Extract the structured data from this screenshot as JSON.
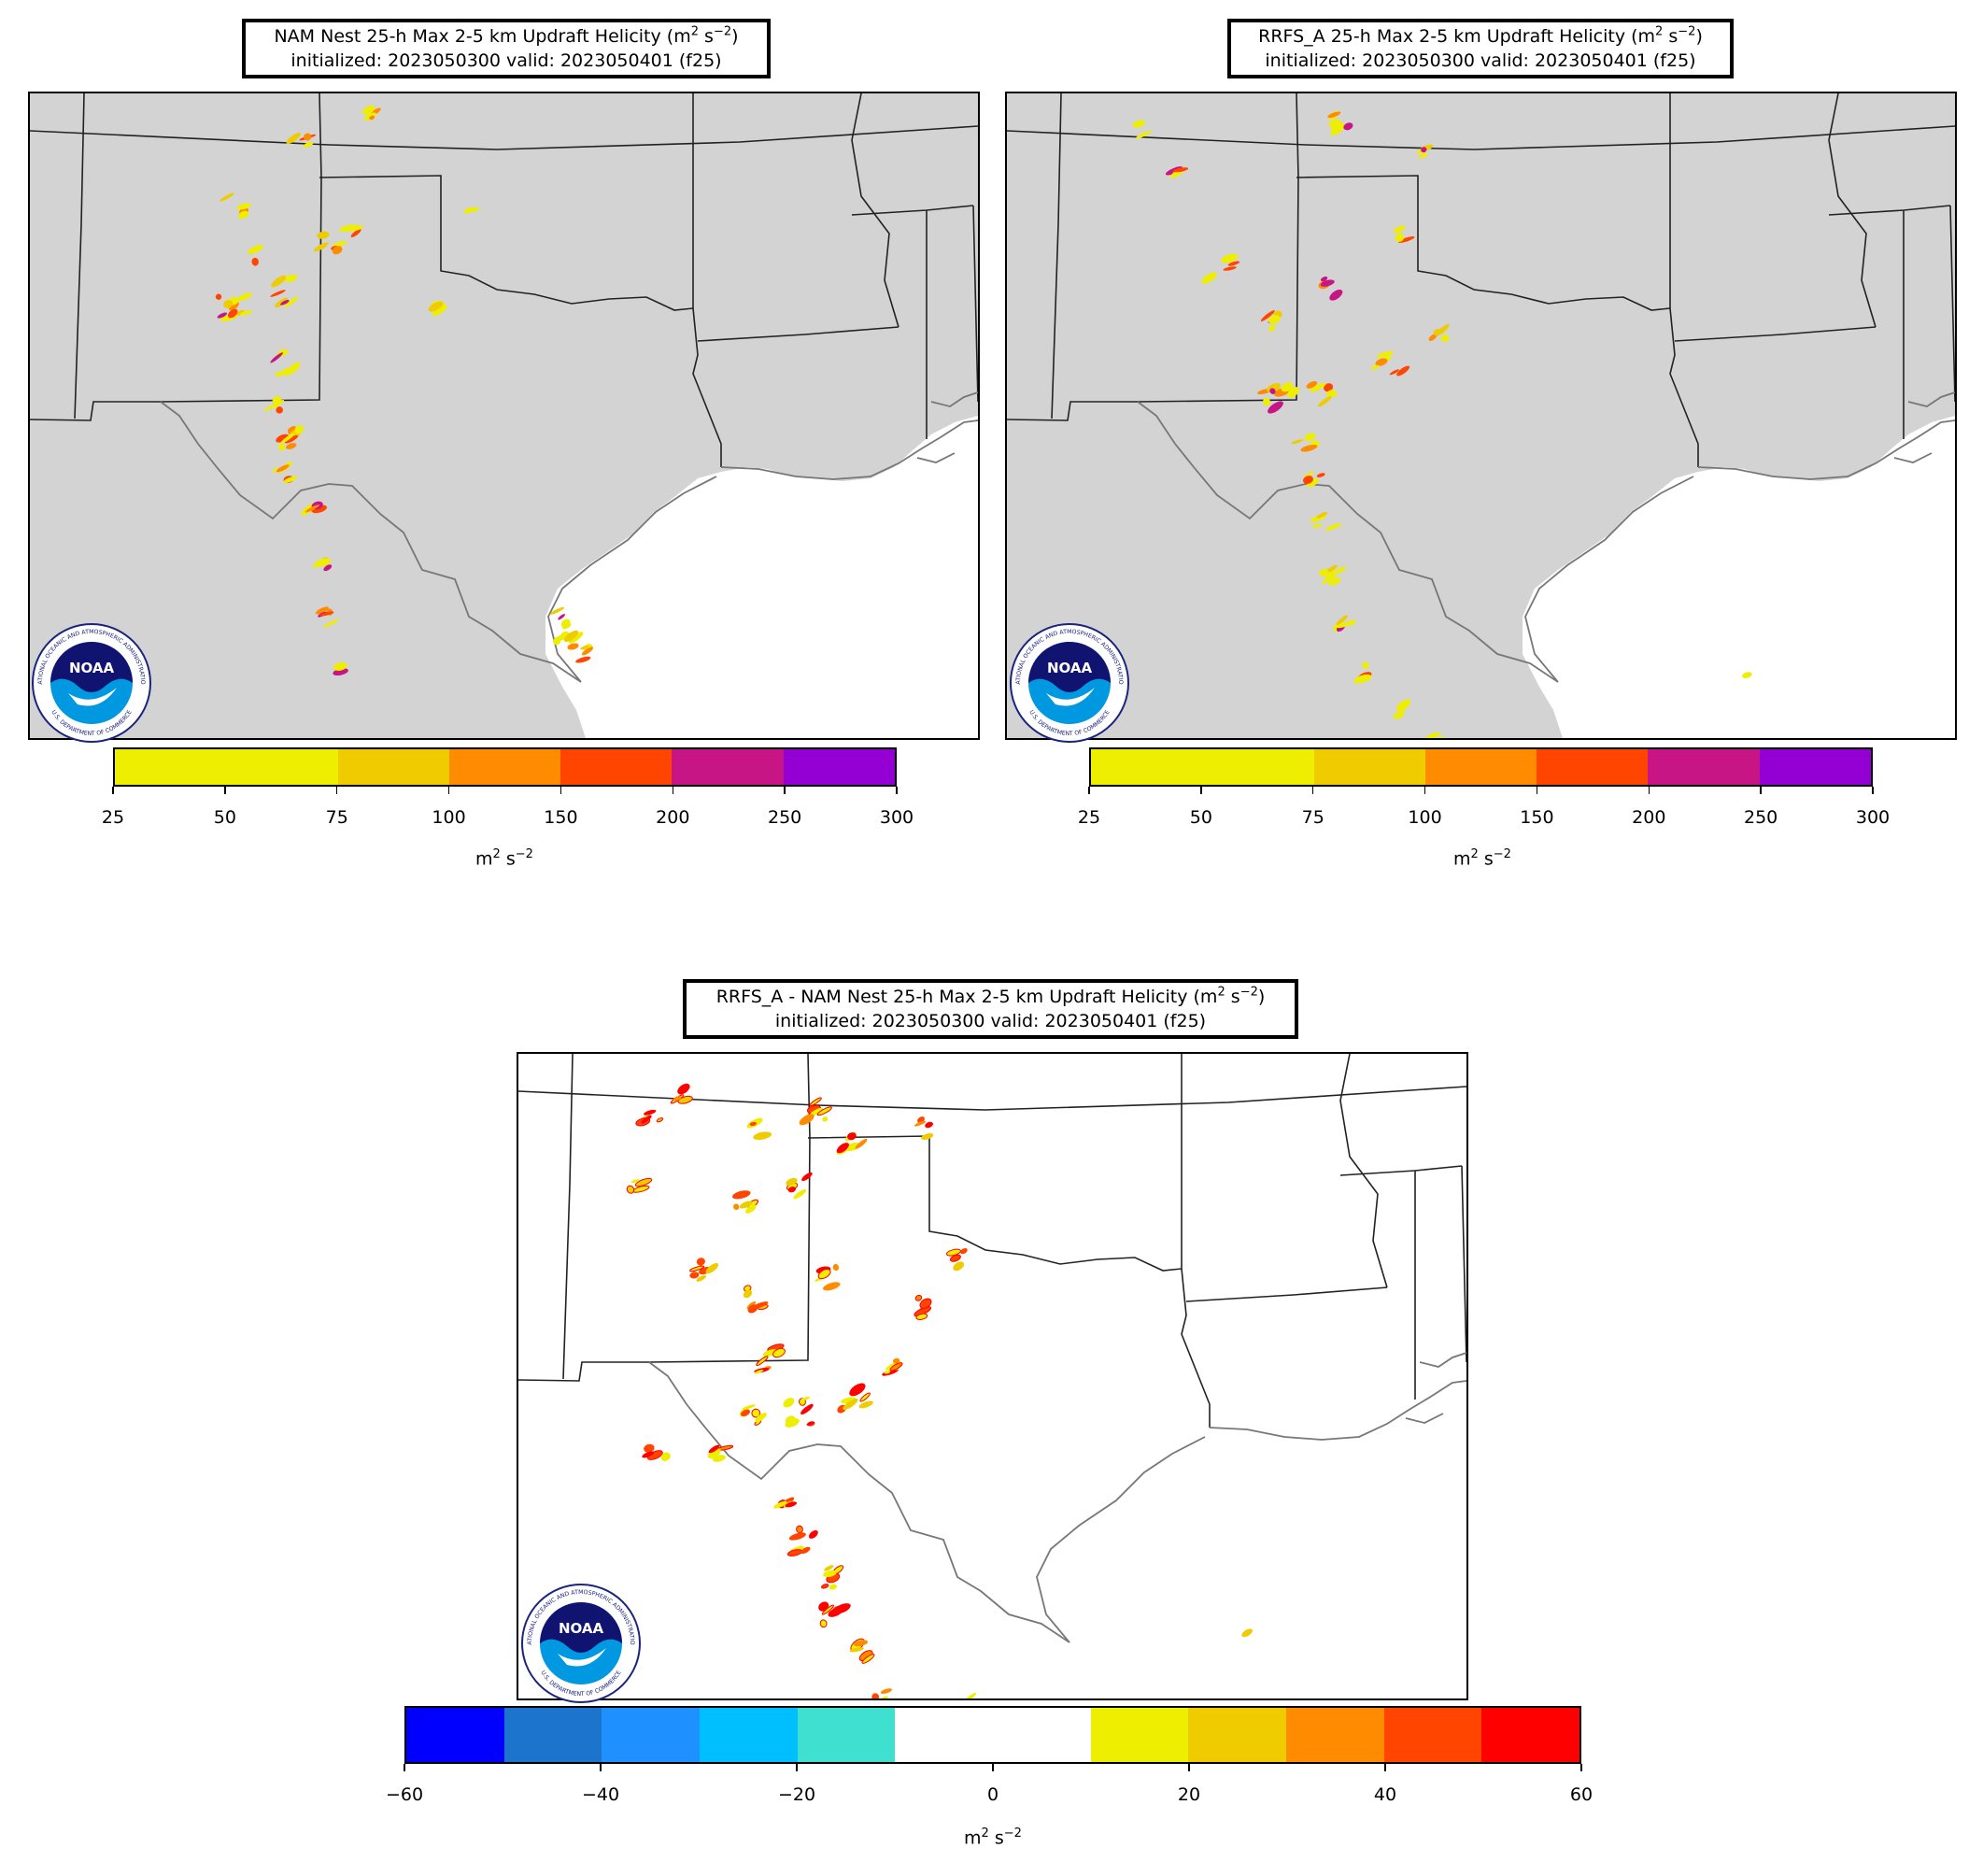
{
  "panels": [
    {
      "id": "nam",
      "title_prefix": "NAM Nest 25-h Max 2-5 km Updraft Helicity (m",
      "title_sup1": "2",
      "title_mid": " s",
      "title_sup2": "−2",
      "title_suffix": ")",
      "subtitle": "initialized: 2023050300 valid: 2023050401 (f25)",
      "unit_main": "m",
      "unit_sup1": "2",
      "unit_mid": " s",
      "unit_sup2": "−2"
    },
    {
      "id": "rrfs",
      "title_prefix": "RRFS_A 25-h Max 2-5 km Updraft Helicity (m",
      "title_sup1": "2",
      "title_mid": " s",
      "title_sup2": "−2",
      "title_suffix": ")",
      "subtitle": "initialized: 2023050300 valid: 2023050401 (f25)",
      "unit_main": "m",
      "unit_sup1": "2",
      "unit_mid": " s",
      "unit_sup2": "−2"
    },
    {
      "id": "diff",
      "title_prefix": "RRFS_A - NAM Nest 25-h Max 2-5 km Updraft Helicity (m",
      "title_sup1": "2",
      "title_mid": " s",
      "title_sup2": "−2",
      "title_suffix": ")",
      "subtitle": "initialized: 2023050300 valid: 2023050401 (f25)",
      "unit_main": "m",
      "unit_sup1": "2",
      "unit_mid": " s",
      "unit_sup2": "−2"
    }
  ],
  "colorbar_uh": {
    "ticks": [
      "25",
      "50",
      "75",
      "100",
      "150",
      "200",
      "250",
      "300"
    ],
    "colors": [
      "#eeee00",
      "#eeee00",
      "#eecc00",
      "#ff8c00",
      "#ff4500",
      "#c71585",
      "#9400d3"
    ]
  },
  "colorbar_diff": {
    "ticks": [
      "−60",
      "−40",
      "−20",
      "0",
      "20",
      "40",
      "60"
    ],
    "colors": [
      "#0000ff",
      "#1c74cc",
      "#1e90ff",
      "#00bfff",
      "#40e0d0",
      "#ffffff",
      "#ffffff",
      "#eeee00",
      "#eecc00",
      "#ff8c00",
      "#ff4500",
      "#ff0000"
    ]
  },
  "logo": {
    "text": "NOAA",
    "ring_top": "NATIONAL OCEANIC AND ATMOSPHERIC ADMINISTRATION",
    "ring_bottom": "U.S. DEPARTMENT OF COMMERCE"
  },
  "map_colors": {
    "land": "#d3d3d3",
    "water": "#ffffff",
    "state_lines": "#222222",
    "coast_lines": "#777777"
  }
}
